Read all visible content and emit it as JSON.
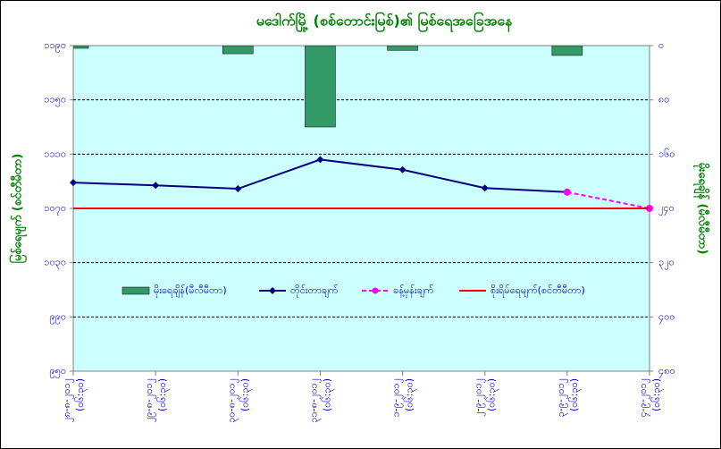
{
  "chart_data": {
    "type": "combo",
    "title": "မဒေါက်မြို့ (စစ်တောင်းမြစ်)၏ မြစ်ရေအခြေအနေ",
    "y_label": "မြစ်ရေမျက် (စင်တီမီတာ)",
    "y2_label": "မိုးရေချိန် (မီလီမီတာ)",
    "categories": [
      [
        "၂၈-၈-၂၀၁၂",
        "(၀၆:၃၀)"
      ],
      [
        "၂၉-၈-၂၀၁၂",
        "(၀၆:၃၀)"
      ],
      [
        "၃၀-၈-၂၀၁၂",
        "(၀၆:၃၀)"
      ],
      [
        "၃၁-၈-၂၀၁၂",
        "(၀၆:၃၀)"
      ],
      [
        "၁-၉-၂၀၁၂",
        "(၀၆:၃၀)"
      ],
      [
        "၂-၉-၂၀၁၂",
        "(၀၆:၃၀)"
      ],
      [
        "၃-၉-၂၀၁၂",
        "(၀၆:၃၀)"
      ],
      [
        "၄-၉-၂၀၁၂",
        "(၀၆:၃၀)"
      ]
    ],
    "ylim": [
      950,
      1190
    ],
    "yticks": [
      {
        "value": 950,
        "label": "၉၅၀"
      },
      {
        "value": 990,
        "label": "၉၉၀"
      },
      {
        "value": 1030,
        "label": "၁၀၃၀"
      },
      {
        "value": 1070,
        "label": "၁၀၇၀"
      },
      {
        "value": 1110,
        "label": "၁၁၁၀"
      },
      {
        "value": 1150,
        "label": "၁၁၅၀"
      },
      {
        "value": 1190,
        "label": "၁၁၉၀"
      }
    ],
    "y2lim": [
      0,
      480
    ],
    "y2_inverted": true,
    "y2ticks": [
      {
        "value": 0,
        "label": "၀"
      },
      {
        "value": 80,
        "label": "၈၀"
      },
      {
        "value": 160,
        "label": "၁၆၀"
      },
      {
        "value": 240,
        "label": "၂၄၀"
      },
      {
        "value": 320,
        "label": "၃၂၀"
      },
      {
        "value": 400,
        "label": "၄၀၀"
      },
      {
        "value": 480,
        "label": "၄၈၀"
      }
    ],
    "grid": true,
    "series": [
      {
        "name": "မိုးရေချိန်(မီလီမီတာ)",
        "kind": "bar",
        "axis": "y2",
        "color": "#339966",
        "values": [
          4,
          0,
          12,
          120,
          7,
          0,
          14.5,
          0
        ]
      },
      {
        "name": "တိုင်းတာချက်",
        "kind": "line",
        "color": "#000080",
        "marker": "diamond",
        "values": [
          1089,
          1087,
          1084.5,
          1106,
          1098.5,
          1085,
          1082,
          null
        ]
      },
      {
        "name": "ခန့်မှန်းချက်",
        "kind": "line",
        "dashed": true,
        "color": "#ff00ff",
        "marker": "circle",
        "values": [
          null,
          null,
          null,
          null,
          null,
          null,
          1082,
          1070
        ]
      },
      {
        "name": "စိုးရိမ်ရေမျက်(စင်တီမီတာ)",
        "kind": "hline",
        "color": "#ff0000",
        "value": 1070
      }
    ]
  }
}
